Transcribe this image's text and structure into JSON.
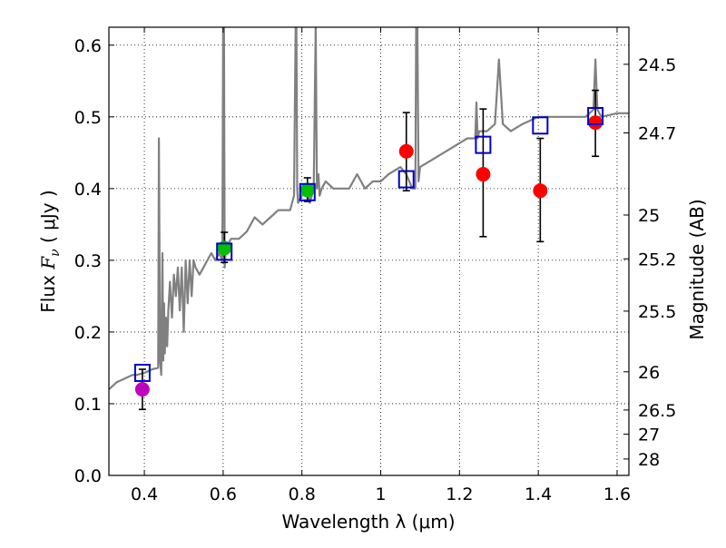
{
  "chart_data": {
    "type": "scatter",
    "xlabel": "Wavelength  λ (μm)",
    "ylabel_prefix": "Flux  ",
    "ylabel_symbol": "F",
    "ylabel_sub": "ν",
    "ylabel_unit": "  ( μJy )",
    "y2label": "Magnitude (AB)",
    "xlim": [
      0.31,
      1.63
    ],
    "ylim": [
      0.0,
      0.625
    ],
    "grid": true,
    "xticks": [
      {
        "value": 0.4,
        "label": "0.4"
      },
      {
        "value": 0.6,
        "label": "0.6"
      },
      {
        "value": 0.8,
        "label": "0.8"
      },
      {
        "value": 1.0,
        "label": "1"
      },
      {
        "value": 1.2,
        "label": "1.2"
      },
      {
        "value": 1.4,
        "label": "1.4"
      },
      {
        "value": 1.6,
        "label": "1.6"
      }
    ],
    "yticks": [
      {
        "value": 0.0,
        "label": "0.0"
      },
      {
        "value": 0.1,
        "label": "0.1"
      },
      {
        "value": 0.2,
        "label": "0.2"
      },
      {
        "value": 0.3,
        "label": "0.3"
      },
      {
        "value": 0.4,
        "label": "0.4"
      },
      {
        "value": 0.5,
        "label": "0.5"
      },
      {
        "value": 0.6,
        "label": "0.6"
      }
    ],
    "mag_ticks": [
      {
        "flux": 0.5733,
        "label": "24.5"
      },
      {
        "flux": 0.4776,
        "label": "24.7"
      },
      {
        "flux": 0.3631,
        "label": "25"
      },
      {
        "flux": 0.302,
        "label": "25.2"
      },
      {
        "flux": 0.2291,
        "label": "25.5"
      },
      {
        "flux": 0.1445,
        "label": "26"
      },
      {
        "flux": 0.0912,
        "label": "26.5"
      },
      {
        "flux": 0.0575,
        "label": "27"
      },
      {
        "flux": 0.0229,
        "label": "28"
      }
    ],
    "photometry": [
      {
        "x": 0.395,
        "y": 0.12,
        "err_lo": 0.028,
        "err_hi": 0.028,
        "color": "#bf00bf"
      },
      {
        "x": 0.603,
        "y": 0.317,
        "err_lo": 0.02,
        "err_hi": 0.022,
        "color": "#00c000"
      },
      {
        "x": 0.814,
        "y": 0.398,
        "err_lo": 0.016,
        "err_hi": 0.017,
        "color": "#00c000"
      },
      {
        "x": 1.065,
        "y": 0.452,
        "err_lo": 0.055,
        "err_hi": 0.054,
        "color": "#ff0000"
      },
      {
        "x": 1.26,
        "y": 0.42,
        "err_lo": 0.087,
        "err_hi": 0.091,
        "color": "#ff0000"
      },
      {
        "x": 1.405,
        "y": 0.397,
        "err_lo": 0.071,
        "err_hi": 0.073,
        "color": "#ff0000"
      },
      {
        "x": 1.545,
        "y": 0.492,
        "err_lo": 0.047,
        "err_hi": 0.045,
        "color": "#ff0000"
      }
    ],
    "model_points": [
      {
        "x": 0.395,
        "y": 0.143
      },
      {
        "x": 0.603,
        "y": 0.312
      },
      {
        "x": 0.814,
        "y": 0.395
      },
      {
        "x": 1.065,
        "y": 0.413
      },
      {
        "x": 1.26,
        "y": 0.461
      },
      {
        "x": 1.405,
        "y": 0.488
      },
      {
        "x": 1.545,
        "y": 0.501
      }
    ],
    "spectrum": {
      "color": "#808080",
      "x": [
        0.31,
        0.33,
        0.35,
        0.37,
        0.38,
        0.4,
        0.42,
        0.435,
        0.437,
        0.44,
        0.443,
        0.446,
        0.448,
        0.45,
        0.452,
        0.455,
        0.458,
        0.461,
        0.465,
        0.47,
        0.475,
        0.48,
        0.485,
        0.49,
        0.495,
        0.5,
        0.505,
        0.51,
        0.515,
        0.52,
        0.525,
        0.53,
        0.54,
        0.55,
        0.56,
        0.57,
        0.58,
        0.59,
        0.598,
        0.6,
        0.602,
        0.604,
        0.606,
        0.61,
        0.62,
        0.64,
        0.66,
        0.68,
        0.7,
        0.72,
        0.74,
        0.76,
        0.77,
        0.78,
        0.784,
        0.786,
        0.788,
        0.79,
        0.8,
        0.815,
        0.82,
        0.83,
        0.835,
        0.838,
        0.842,
        0.845,
        0.85,
        0.86,
        0.88,
        0.9,
        0.92,
        0.94,
        0.96,
        0.98,
        1.0,
        1.02,
        1.05,
        1.065,
        1.08,
        1.088,
        1.09,
        1.093,
        1.096,
        1.1,
        1.13,
        1.16,
        1.19,
        1.22,
        1.24,
        1.243,
        1.246,
        1.25,
        1.27,
        1.29,
        1.3,
        1.31,
        1.33,
        1.36,
        1.4,
        1.44,
        1.48,
        1.52,
        1.54,
        1.545,
        1.55,
        1.56,
        1.6,
        1.63
      ],
      "y": [
        0.12,
        0.13,
        0.135,
        0.14,
        0.14,
        0.143,
        0.148,
        0.15,
        0.47,
        0.16,
        0.14,
        0.31,
        0.16,
        0.24,
        0.17,
        0.22,
        0.18,
        0.23,
        0.27,
        0.22,
        0.28,
        0.25,
        0.29,
        0.23,
        0.29,
        0.2,
        0.3,
        0.24,
        0.3,
        0.25,
        0.3,
        0.29,
        0.28,
        0.29,
        0.3,
        0.31,
        0.3,
        0.31,
        0.3,
        0.63,
        0.63,
        0.29,
        0.31,
        0.32,
        0.33,
        0.33,
        0.34,
        0.36,
        0.35,
        0.36,
        0.37,
        0.37,
        0.37,
        0.39,
        0.63,
        0.63,
        0.4,
        0.38,
        0.39,
        0.4,
        0.38,
        0.4,
        0.63,
        0.4,
        0.42,
        0.39,
        0.4,
        0.41,
        0.4,
        0.4,
        0.4,
        0.42,
        0.4,
        0.41,
        0.41,
        0.42,
        0.43,
        0.42,
        0.4,
        0.4,
        0.63,
        0.63,
        0.41,
        0.43,
        0.44,
        0.45,
        0.46,
        0.47,
        0.47,
        0.52,
        0.47,
        0.48,
        0.48,
        0.49,
        0.58,
        0.49,
        0.48,
        0.49,
        0.5,
        0.5,
        0.5,
        0.5,
        0.51,
        0.58,
        0.51,
        0.5,
        0.505,
        0.505
      ]
    }
  }
}
